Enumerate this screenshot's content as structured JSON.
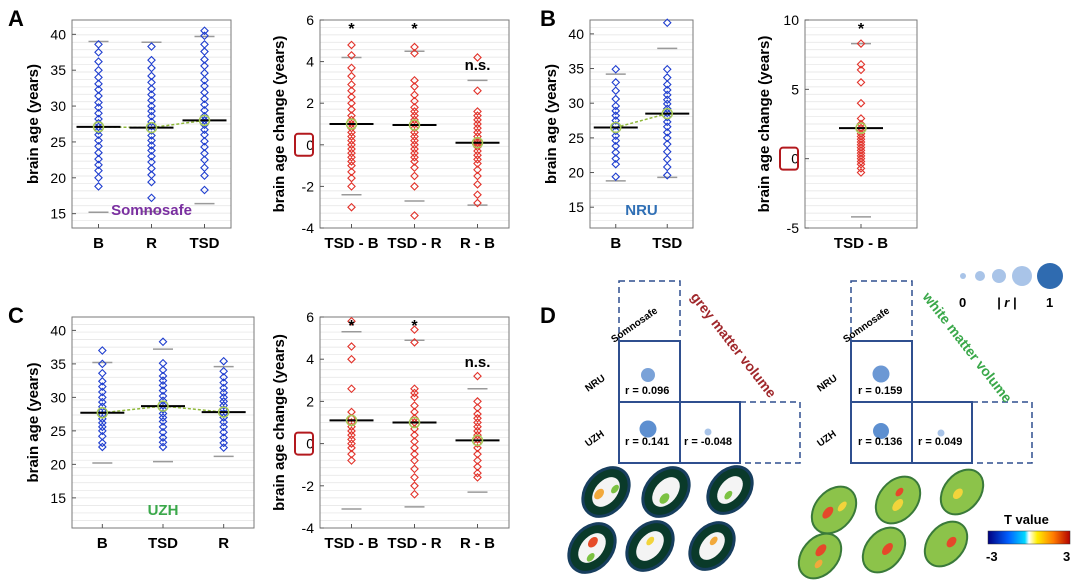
{
  "panel_labels": [
    "A",
    "B",
    "C",
    "D"
  ],
  "chart_data": [
    {
      "id": "A-left",
      "type": "scatter",
      "ylabel": "brain age (years)",
      "ylim": [
        13,
        42
      ],
      "yticks": [
        "15",
        "20",
        "25",
        "30",
        "35",
        "40"
      ],
      "categories": [
        "B",
        "R",
        "TSD"
      ],
      "dataset": "Somnosafe",
      "dataset_color": "#7a2fa0",
      "means": [
        27.1,
        27.0,
        28.0
      ],
      "range_min": [
        15.2,
        15.3,
        16.4
      ],
      "range_max": [
        39.0,
        38.9,
        39.7
      ],
      "points": [
        [
          38.6,
          37.5,
          36.2,
          35.0,
          34.0,
          33.1,
          32.3,
          31.4,
          30.5,
          29.8,
          29.0,
          28.2,
          27.6,
          27.1,
          26.6,
          26.0,
          25.2,
          24.4,
          23.5,
          22.6,
          21.8,
          21.0,
          20.0,
          18.8
        ],
        [
          38.3,
          36.4,
          35.3,
          34.2,
          33.3,
          32.4,
          31.6,
          30.8,
          30.0,
          29.3,
          28.6,
          27.8,
          27.2,
          26.6,
          25.9,
          25.2,
          24.5,
          23.8,
          23.0,
          22.2,
          21.3,
          20.4,
          19.4,
          17.2
        ],
        [
          40.5,
          39.8,
          38.6,
          37.6,
          36.5,
          35.6,
          34.6,
          33.6,
          32.8,
          31.9,
          31.0,
          30.2,
          29.4,
          28.6,
          28.0,
          27.4,
          26.7,
          26.0,
          25.1,
          24.3,
          23.4,
          22.5,
          21.4,
          20.3,
          18.3
        ]
      ]
    },
    {
      "id": "A-right",
      "type": "scatter",
      "ylabel": "brain age change (years)",
      "ylim": [
        -4,
        6
      ],
      "yticks": [
        "-4",
        "-2",
        "0",
        "2",
        "4",
        "6"
      ],
      "highlighted_tick": "0",
      "categories": [
        "TSD - B",
        "TSD - R",
        "R - B"
      ],
      "significance": [
        "*",
        "*",
        "n.s."
      ],
      "means": [
        1.0,
        0.95,
        0.1
      ],
      "range_min": [
        -2.4,
        -2.7,
        -2.9
      ],
      "range_max": [
        4.2,
        4.5,
        3.1
      ],
      "points": [
        [
          4.8,
          4.3,
          3.7,
          3.3,
          2.9,
          2.6,
          2.3,
          2.0,
          1.7,
          1.4,
          1.2,
          1.0,
          0.8,
          0.6,
          0.4,
          0.2,
          0.0,
          -0.2,
          -0.4,
          -0.6,
          -0.8,
          -1.0,
          -1.3,
          -1.6,
          -2.0,
          -3.0
        ],
        [
          4.7,
          4.4,
          3.1,
          2.8,
          2.4,
          2.1,
          1.8,
          1.6,
          1.4,
          1.2,
          1.0,
          0.8,
          0.6,
          0.4,
          0.2,
          0.0,
          -0.2,
          -0.4,
          -0.6,
          -0.8,
          -1.1,
          -1.5,
          -2.0,
          -3.4
        ],
        [
          4.2,
          2.6,
          1.6,
          1.4,
          1.2,
          1.0,
          0.8,
          0.6,
          0.4,
          0.2,
          0.1,
          0.0,
          -0.1,
          -0.3,
          -0.5,
          -0.7,
          -0.9,
          -1.2,
          -1.5,
          -1.9,
          -2.4,
          -2.8
        ]
      ]
    },
    {
      "id": "B-left",
      "type": "scatter",
      "ylabel": "brain age (years)",
      "ylim": [
        12,
        42
      ],
      "yticks": [
        "15",
        "20",
        "25",
        "30",
        "35",
        "40"
      ],
      "categories": [
        "B",
        "TSD"
      ],
      "dataset": "NRU",
      "dataset_color": "#2f6fb5",
      "means": [
        26.5,
        28.5
      ],
      "range_min": [
        18.8,
        19.3
      ],
      "range_max": [
        34.2,
        37.9
      ],
      "points": [
        [
          34.9,
          33.0,
          31.8,
          30.6,
          29.6,
          28.9,
          28.2,
          27.5,
          26.8,
          26.0,
          25.3,
          24.6,
          23.8,
          22.9,
          22.0,
          21.2,
          19.4
        ],
        [
          41.6,
          34.9,
          33.7,
          32.7,
          31.9,
          31.2,
          30.5,
          29.9,
          29.2,
          28.6,
          28.0,
          27.3,
          26.6,
          25.8,
          25.0,
          24.1,
          23.0,
          21.9,
          20.8,
          19.6
        ]
      ]
    },
    {
      "id": "B-right",
      "type": "scatter",
      "ylabel": "brain age change (years)",
      "ylim": [
        -5,
        10
      ],
      "yticks": [
        "-5",
        "0",
        "5",
        "10"
      ],
      "highlighted_tick": "0",
      "categories": [
        "TSD - B"
      ],
      "significance": [
        "*"
      ],
      "means": [
        2.2
      ],
      "range_min": [
        -4.2
      ],
      "range_max": [
        8.3
      ],
      "points": [
        [
          8.3,
          6.8,
          6.4,
          5.5,
          4.0,
          2.9,
          2.5,
          2.2,
          2.0,
          1.8,
          1.6,
          1.4,
          1.2,
          1.0,
          0.8,
          0.6,
          0.4,
          0.2,
          0.0,
          -0.2,
          -0.4,
          -0.7,
          -1.0
        ]
      ]
    },
    {
      "id": "C-left",
      "type": "scatter",
      "ylabel": "brain age (years)",
      "ylim": [
        10.5,
        42
      ],
      "yticks": [
        "15",
        "20",
        "25",
        "30",
        "35",
        "40"
      ],
      "categories": [
        "B",
        "TSD",
        "R"
      ],
      "dataset": "UZH",
      "dataset_color": "#3aa84a",
      "means": [
        27.7,
        28.7,
        27.8
      ],
      "range_min": [
        20.2,
        20.4,
        21.2
      ],
      "range_max": [
        35.2,
        37.2,
        34.6
      ],
      "points": [
        [
          37.0,
          35.0,
          33.6,
          32.4,
          31.6,
          30.8,
          30.0,
          29.3,
          28.6,
          28.0,
          27.4,
          26.8,
          26.2,
          25.6,
          25.0,
          24.2,
          23.2,
          22.6
        ],
        [
          38.3,
          35.1,
          34.1,
          33.2,
          32.5,
          31.8,
          31.0,
          30.2,
          29.5,
          28.8,
          28.2,
          27.6,
          27.0,
          26.4,
          25.6,
          24.8,
          24.0,
          23.3,
          22.6
        ],
        [
          35.4,
          33.9,
          33.0,
          32.2,
          31.4,
          30.7,
          30.0,
          29.4,
          28.8,
          28.2,
          27.6,
          27.0,
          26.3,
          25.6,
          24.8,
          24.0,
          23.2,
          22.5
        ]
      ]
    },
    {
      "id": "C-right",
      "type": "scatter",
      "ylabel": "brain age change (years)",
      "ylim": [
        -4,
        6
      ],
      "yticks": [
        "-4",
        "-2",
        "0",
        "2",
        "4",
        "6"
      ],
      "highlighted_tick": "0",
      "categories": [
        "TSD - B",
        "TSD - R",
        "R - B"
      ],
      "significance": [
        "*",
        "*",
        "n.s."
      ],
      "means": [
        1.1,
        1.0,
        0.15
      ],
      "range_min": [
        -3.1,
        -3.0,
        -2.3
      ],
      "range_max": [
        5.3,
        4.9,
        2.6
      ],
      "points": [
        [
          5.8,
          4.6,
          4.0,
          2.6,
          1.5,
          1.2,
          1.0,
          0.8,
          0.6,
          0.4,
          0.2,
          0.0,
          -0.2,
          -0.5,
          -0.8
        ],
        [
          5.4,
          4.8,
          2.6,
          2.4,
          2.2,
          1.8,
          1.5,
          1.2,
          1.0,
          0.7,
          0.4,
          0.1,
          -0.2,
          -0.5,
          -0.8,
          -1.2,
          -1.6,
          -2.0,
          -2.4
        ],
        [
          3.2,
          2.0,
          1.7,
          1.4,
          1.2,
          1.0,
          0.8,
          0.6,
          0.4,
          0.2,
          0.0,
          -0.2,
          -0.5,
          -0.8,
          -1.1,
          -1.4,
          -1.6
        ]
      ]
    }
  ],
  "panel_d": {
    "legend": {
      "min_label": "0",
      "r_label": "| r |",
      "max_label": "1",
      "circles": [
        0.1,
        0.25,
        0.45,
        0.7,
        1.0
      ]
    },
    "sites": [
      "Somnosafe",
      "NRU",
      "UZH"
    ],
    "matrices": [
      {
        "title": "grey matter volume",
        "title_color": "#a0282c",
        "cells": [
          {
            "row": 1,
            "col": 0,
            "r": 0.096,
            "label": "r = 0.096"
          },
          {
            "row": 2,
            "col": 0,
            "r": 0.141,
            "label": "r = 0.141"
          },
          {
            "row": 2,
            "col": 1,
            "r": -0.048,
            "label": "r = -0.048"
          }
        ]
      },
      {
        "title": "white matter volume",
        "title_color": "#3aa84a",
        "cells": [
          {
            "row": 1,
            "col": 0,
            "r": 0.159,
            "label": "r = 0.159"
          },
          {
            "row": 2,
            "col": 0,
            "r": 0.136,
            "label": "r = 0.136"
          },
          {
            "row": 2,
            "col": 1,
            "r": 0.049,
            "label": "r = 0.049"
          }
        ]
      }
    ],
    "colorbar": {
      "title": "T value",
      "min_label": "-3",
      "max_label": "3"
    }
  },
  "colors": {
    "blue": "#1f3ecf",
    "red": "#e2332b",
    "mean_marker": "#a7c957",
    "grid": "#e3e3e3",
    "matrix_line": "#2f4f8f"
  }
}
